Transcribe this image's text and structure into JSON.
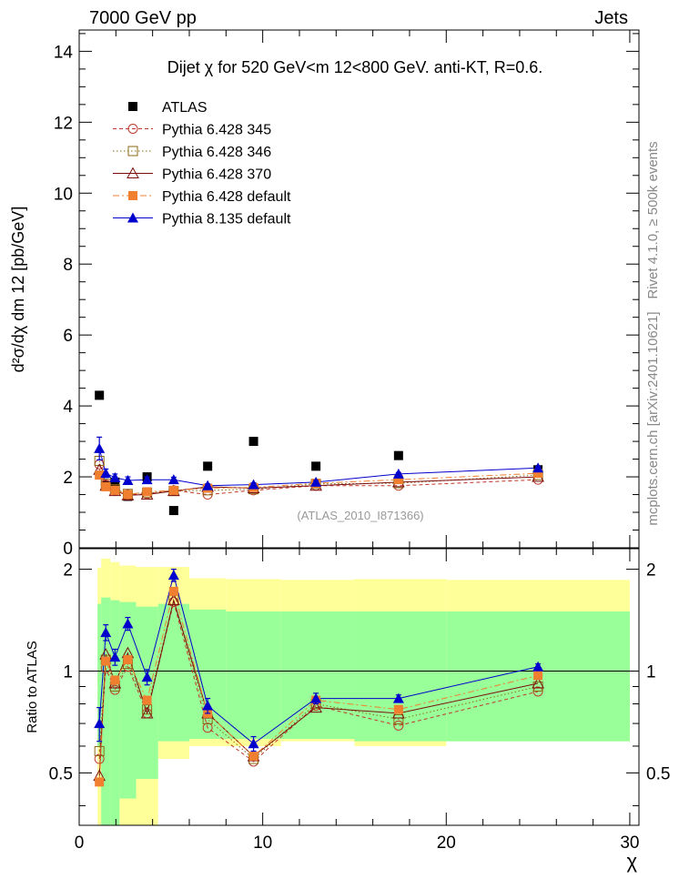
{
  "header": {
    "left": "7000 GeV pp",
    "right": "Jets"
  },
  "side_labels": {
    "rivet": "Rivet 4.1.0, ≥ 500k events",
    "mcplots": "mcplots.cern.ch [arXiv:2401.10621]"
  },
  "chart_data": [
    {
      "type": "scatter",
      "panel": "main",
      "title": "Dijet χ for 520 GeV<m 12<800 GeV.  anti-KT, R=0.6.",
      "ylabel": "d²σ/dχ dm 12 [pb/GeV]",
      "xlim": [
        0,
        30.5
      ],
      "ylim": [
        0,
        14.6
      ],
      "yticks": [
        "0",
        "2",
        "4",
        "6",
        "8",
        "10",
        "12",
        "14"
      ],
      "watermark": "(ATLAS_2010_I871366)",
      "legend_position": "top-left",
      "x": [
        1.1,
        1.45,
        1.95,
        2.65,
        3.7,
        5.15,
        7.0,
        9.5,
        12.9,
        17.4,
        25.0
      ],
      "series": [
        {
          "name": "ATLAS",
          "color": "#000000",
          "marker": "filled-square",
          "values": [
            4.3,
            1.75,
            1.85,
            1.45,
            2.0,
            1.05,
            2.3,
            3.0,
            2.3,
            2.6,
            2.2
          ]
        },
        {
          "name": "Pythia 6.428 345",
          "color": "#c0392b",
          "marker": "open-circle",
          "line": "dashed",
          "values": [
            2.35,
            1.78,
            1.62,
            1.5,
            1.52,
            1.62,
            1.5,
            1.62,
            1.75,
            1.75,
            1.92
          ]
        },
        {
          "name": "Pythia 6.428 346",
          "color": "#8b6914",
          "marker": "open-square",
          "line": "dotted",
          "values": [
            2.45,
            1.8,
            1.65,
            1.52,
            1.55,
            1.6,
            1.62,
            1.65,
            1.8,
            1.82,
            2.05
          ]
        },
        {
          "name": "Pythia 6.428 370",
          "color": "#7b0d0d",
          "marker": "open-triangle",
          "line": "solid",
          "values": [
            2.2,
            1.75,
            1.6,
            1.48,
            1.5,
            1.6,
            1.72,
            1.68,
            1.75,
            1.85,
            2.0
          ]
        },
        {
          "name": "Pythia 6.428 default",
          "color": "#f08030",
          "marker": "filled-square",
          "line": "dashdot",
          "values": [
            2.05,
            1.72,
            1.62,
            1.5,
            1.58,
            1.62,
            1.68,
            1.7,
            1.82,
            1.92,
            2.1
          ]
        },
        {
          "name": "Pythia 8.135 default",
          "color": "#0000cc",
          "marker": "filled-triangle",
          "line": "solid",
          "values": [
            2.8,
            2.1,
            1.98,
            1.9,
            1.92,
            1.92,
            1.75,
            1.78,
            1.85,
            2.08,
            2.25
          ],
          "errors": [
            0.32,
            0.12,
            0.1,
            0.1,
            0.08,
            0.07,
            0.05,
            0.05,
            0.05,
            0.04,
            0.04
          ]
        }
      ]
    },
    {
      "type": "scatter",
      "panel": "ratio",
      "ylabel": "Ratio to ATLAS",
      "xlabel": "χ",
      "xlim": [
        0,
        30.5
      ],
      "ylim": [
        0.35,
        2.3
      ],
      "xticks": [
        "0",
        "10",
        "20",
        "30"
      ],
      "yticks": [
        "0.5",
        "1",
        "2"
      ],
      "band_edges": [
        1.0,
        1.2,
        1.7,
        2.2,
        3.1,
        4.3,
        6.0,
        8.0,
        11.0,
        15.0,
        20.0,
        30.0
      ],
      "yellow_band": [
        [
          0.35,
          2.02
        ],
        [
          0.35,
          2.15
        ],
        [
          0.35,
          2.1
        ],
        [
          0.35,
          2.05
        ],
        [
          0.35,
          2.03
        ],
        [
          0.55,
          2.03
        ],
        [
          0.6,
          1.88
        ],
        [
          0.6,
          1.87
        ],
        [
          0.62,
          1.86
        ],
        [
          0.6,
          1.87
        ],
        [
          0.62,
          1.86
        ]
      ],
      "green_band": [
        [
          0.6,
          1.58
        ],
        [
          0.35,
          1.65
        ],
        [
          0.35,
          1.62
        ],
        [
          0.42,
          1.6
        ],
        [
          0.48,
          1.55
        ],
        [
          0.62,
          1.58
        ],
        [
          0.63,
          1.52
        ],
        [
          0.63,
          1.5
        ],
        [
          0.63,
          1.5
        ],
        [
          0.62,
          1.5
        ],
        [
          0.62,
          1.5
        ]
      ],
      "reference_line": 1,
      "x": [
        1.1,
        1.45,
        1.95,
        2.65,
        3.7,
        5.15,
        7.0,
        9.5,
        12.9,
        17.4,
        25.0
      ],
      "series": [
        {
          "name": "Pythia 6.428 345",
          "color": "#c0392b",
          "marker": "open-circle",
          "line": "dashed",
          "values": [
            0.55,
            1.02,
            0.88,
            1.03,
            0.75,
            1.6,
            0.68,
            0.54,
            0.79,
            0.69,
            0.87
          ]
        },
        {
          "name": "Pythia 6.428 346",
          "color": "#8b6914",
          "marker": "open-square",
          "line": "dotted",
          "values": [
            0.58,
            1.08,
            0.9,
            1.05,
            0.77,
            1.62,
            0.72,
            0.55,
            0.8,
            0.72,
            0.9
          ]
        },
        {
          "name": "Pythia 6.428 370",
          "color": "#7b0d0d",
          "marker": "open-triangle",
          "line": "solid",
          "values": [
            0.49,
            1.12,
            0.92,
            1.13,
            0.75,
            1.62,
            0.75,
            0.56,
            0.78,
            0.75,
            0.92
          ]
        },
        {
          "name": "Pythia 6.428 default",
          "color": "#f08030",
          "marker": "filled-square",
          "line": "dashdot",
          "values": [
            0.47,
            1.07,
            0.94,
            1.08,
            0.82,
            1.72,
            0.75,
            0.56,
            0.82,
            0.77,
            0.97
          ]
        },
        {
          "name": "Pythia 8.135 default",
          "color": "#0000cc",
          "marker": "filled-triangle",
          "line": "solid",
          "values": [
            0.7,
            1.3,
            1.1,
            1.38,
            0.96,
            1.92,
            0.79,
            0.61,
            0.83,
            0.83,
            1.03
          ],
          "errors": [
            0.08,
            0.07,
            0.06,
            0.06,
            0.05,
            0.08,
            0.04,
            0.03,
            0.03,
            0.02,
            0.02
          ]
        }
      ]
    }
  ]
}
